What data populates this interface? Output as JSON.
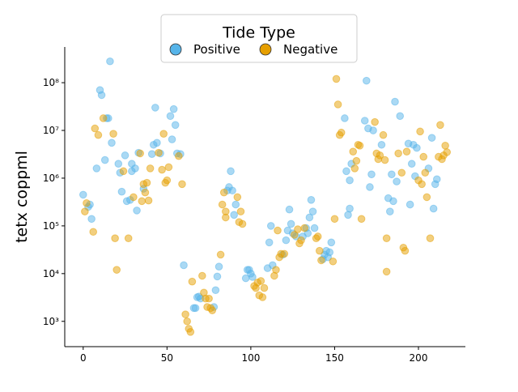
{
  "chart_data": {
    "type": "scatter",
    "ylabel": "tetx coppml",
    "legend_title": "Tide Type",
    "legend_loc": "upper center",
    "yscale": "log",
    "xlim": [
      -11,
      228
    ],
    "ylim": [
      295,
      560000000
    ],
    "xticks": [
      0,
      50,
      100,
      150,
      200
    ],
    "yticks": [
      {
        "value": 1000,
        "label": "10³"
      },
      {
        "value": 10000,
        "label": "10⁴"
      },
      {
        "value": 100000,
        "label": "10⁵"
      },
      {
        "value": 1000000,
        "label": "10⁶"
      },
      {
        "value": 10000000,
        "label": "10⁷"
      },
      {
        "value": 100000000,
        "label": "10⁸"
      }
    ],
    "series": [
      {
        "name": "Positive",
        "color": "#56B4E9",
        "x": [
          0,
          3,
          4,
          5,
          8,
          10,
          11,
          13,
          14,
          15,
          16,
          17,
          21,
          22,
          23,
          25,
          26,
          28,
          29,
          29,
          31,
          32,
          33,
          36,
          41,
          42,
          43,
          44,
          46,
          52,
          53,
          54,
          55,
          56,
          58,
          60,
          66,
          67,
          68,
          69,
          70,
          78,
          79,
          80,
          81,
          86,
          87,
          88,
          89,
          90,
          91,
          97,
          98,
          99,
          100,
          101,
          110,
          111,
          112,
          113,
          119,
          121,
          122,
          123,
          124,
          125,
          127,
          131,
          133,
          134,
          135,
          136,
          137,
          138,
          143,
          144,
          145,
          146,
          147,
          148,
          156,
          157,
          158,
          159,
          159,
          160,
          168,
          169,
          170,
          171,
          172,
          173,
          178,
          182,
          183,
          184,
          185,
          186,
          187,
          189,
          194,
          195,
          196,
          197,
          198,
          199,
          206,
          208,
          209,
          210,
          211
        ],
        "values": [
          450000,
          250000,
          280000,
          140000,
          1600000,
          70000000,
          55000000,
          2400000,
          18000000,
          18000000,
          280000000,
          5500000,
          2000000,
          1300000,
          520000,
          3000000,
          330000,
          350000,
          2000000,
          1400000,
          1600000,
          210000,
          3400000,
          600000,
          3200000,
          5000000,
          30000000,
          5500000,
          3300000,
          20000000,
          6500000,
          28000000,
          13000000,
          3300000,
          3200000,
          15000,
          1900,
          1900,
          3200,
          3300,
          3000,
          2000,
          4500,
          8700,
          14000,
          550000,
          650000,
          1400000,
          550000,
          170000,
          280000,
          8000,
          12000,
          12000,
          10000,
          8500,
          13000,
          45000,
          100000,
          15000,
          25000,
          50000,
          80000,
          220000,
          110000,
          70000,
          60000,
          60000,
          90000,
          70000,
          150000,
          350000,
          200000,
          90000,
          20000,
          25000,
          30000,
          22000,
          28000,
          45000,
          18000000,
          1400000,
          170000,
          230000,
          900000,
          2000000,
          16000000,
          110000000,
          11000000,
          650000,
          1200000,
          10000000,
          5000000,
          380000,
          200000,
          1200000,
          330000,
          40000000,
          850000,
          20000000,
          5300000,
          280000,
          2000000,
          5000000,
          1100000,
          4300000,
          1600000,
          7000000,
          230000,
          750000,
          950000
        ]
      },
      {
        "name": "Negative",
        "color": "#E69F00",
        "x": [
          1,
          2,
          6,
          7,
          9,
          12,
          18,
          19,
          20,
          24,
          27,
          30,
          34,
          35,
          36,
          37,
          38,
          39,
          40,
          45,
          47,
          48,
          49,
          50,
          51,
          57,
          59,
          61,
          62,
          63,
          64,
          65,
          71,
          72,
          73,
          74,
          75,
          76,
          77,
          82,
          83,
          84,
          85,
          85,
          92,
          93,
          94,
          95,
          102,
          103,
          104,
          105,
          106,
          107,
          108,
          114,
          115,
          116,
          117,
          118,
          120,
          126,
          128,
          129,
          130,
          132,
          139,
          140,
          141,
          142,
          149,
          150,
          151,
          152,
          153,
          154,
          161,
          162,
          163,
          164,
          165,
          166,
          174,
          175,
          176,
          177,
          179,
          180,
          181,
          181,
          188,
          190,
          191,
          192,
          193,
          200,
          201,
          202,
          203,
          204,
          205,
          207,
          212,
          213,
          214,
          215,
          216,
          217
        ],
        "values": [
          200000,
          300000,
          75000,
          11000000,
          8000000,
          18000000,
          8500000,
          55000,
          12000,
          1400000,
          55000,
          400000,
          3300000,
          330000,
          750000,
          500000,
          800000,
          340000,
          1600000,
          3400000,
          1500000,
          8500000,
          800000,
          900000,
          1700000,
          2900000,
          750000,
          1400,
          1000,
          700,
          600,
          6800,
          9000,
          4000,
          3000,
          2000,
          3000,
          1900,
          1700,
          25000,
          280000,
          500000,
          150000,
          200000,
          400000,
          120000,
          200000,
          110000,
          5500,
          5000,
          6500,
          3500,
          7000,
          3200,
          5000,
          9000,
          12000,
          80000,
          22000,
          26000,
          26000,
          65000,
          85000,
          43000,
          50000,
          90000,
          55000,
          60000,
          30000,
          19000,
          18000,
          140000,
          120000000,
          35000000,
          8000000,
          9000000,
          3600000,
          1600000,
          2300000,
          5000000,
          4800000,
          140000,
          15000000,
          3300000,
          2500000,
          3000000,
          8000000,
          2400000,
          55000,
          11000,
          3300000,
          1300000,
          35000,
          30000,
          3600000,
          900000,
          9500000,
          750000,
          2800000,
          1300000,
          400000,
          55000,
          2800000,
          13000000,
          2500000,
          3000000,
          4800000,
          3500000
        ]
      }
    ]
  }
}
